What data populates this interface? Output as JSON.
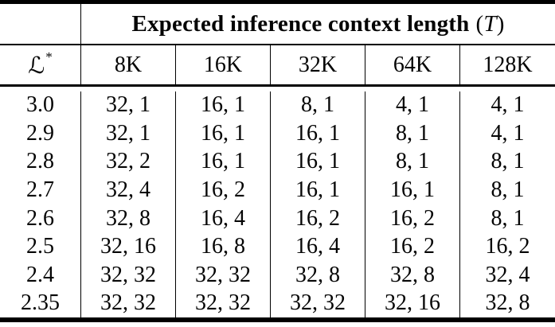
{
  "table": {
    "title": {
      "bold_text": "Expected inference context length",
      "paren_open": "(",
      "variable": "T",
      "paren_close": ")"
    },
    "row_header": {
      "symbol": "ℒ",
      "superscript": "*"
    },
    "column_headers": [
      "8K",
      "16K",
      "32K",
      "64K",
      "128K"
    ],
    "rows": [
      {
        "label": "3.0",
        "values": [
          "32, 1",
          "16, 1",
          "8, 1",
          "4, 1",
          "4, 1"
        ]
      },
      {
        "label": "2.9",
        "values": [
          "32, 1",
          "16, 1",
          "16, 1",
          "8, 1",
          "4, 1"
        ]
      },
      {
        "label": "2.8",
        "values": [
          "32, 2",
          "16, 1",
          "16, 1",
          "8, 1",
          "8, 1"
        ]
      },
      {
        "label": "2.7",
        "values": [
          "32, 4",
          "16, 2",
          "16, 1",
          "16, 1",
          "8, 1"
        ]
      },
      {
        "label": "2.6",
        "values": [
          "32, 8",
          "16, 4",
          "16, 2",
          "16, 2",
          "8, 1"
        ]
      },
      {
        "label": "2.5",
        "values": [
          "32, 16",
          "16, 8",
          "16, 4",
          "16, 2",
          "16, 2"
        ]
      },
      {
        "label": "2.4",
        "values": [
          "32, 32",
          "32, 32",
          "32, 8",
          "32, 8",
          "32, 4"
        ]
      },
      {
        "label": "2.35",
        "values": [
          "32, 32",
          "32, 32",
          "32, 32",
          "32, 16",
          "32, 8"
        ]
      }
    ]
  },
  "colors": {
    "text": "#050505",
    "rule": "#000000",
    "background": "#ffffff"
  }
}
